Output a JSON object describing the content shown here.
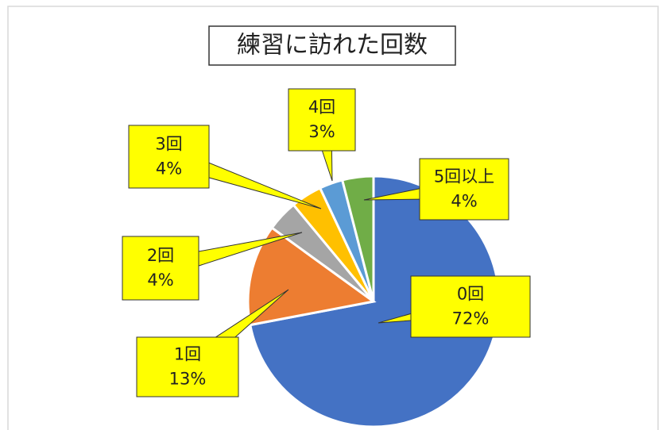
{
  "chart_data": {
    "type": "pie",
    "title": "練習に訪れた回数",
    "categories": [
      "0回",
      "1回",
      "2回",
      "3回",
      "4回",
      "5回以上"
    ],
    "values": [
      72,
      13,
      4,
      4,
      3,
      4
    ],
    "value_labels": [
      "72%",
      "13%",
      "4%",
      "4%",
      "3%",
      "4%"
    ],
    "colors": [
      "#4472c4",
      "#ed7d31",
      "#a5a5a5",
      "#ffc000",
      "#5b9bd5",
      "#70ad47"
    ],
    "label_color": "#ffff00"
  }
}
